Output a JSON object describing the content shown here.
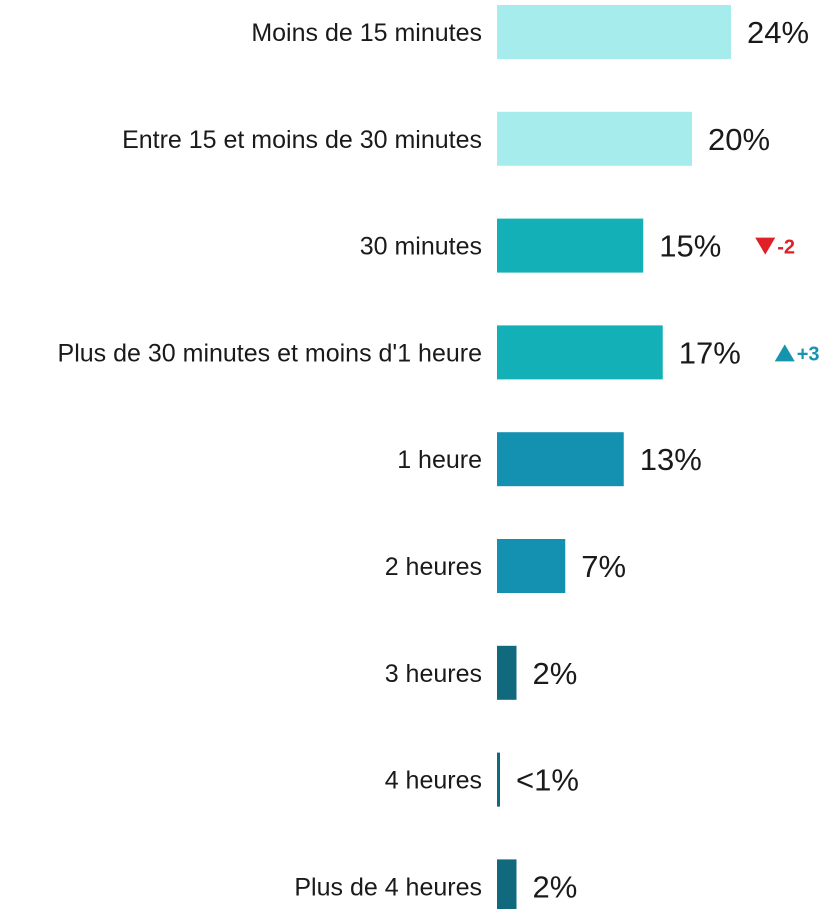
{
  "chart_data": {
    "type": "bar",
    "orientation": "horizontal",
    "title": "",
    "xlabel": "",
    "ylabel": "",
    "xlim": [
      0,
      24
    ],
    "grid": false,
    "legend": "none",
    "categories": [
      "Moins de 15 minutes",
      "Entre 15 et moins de 30 minutes",
      "30 minutes",
      "Plus de 30 minutes et moins d'1 heure",
      "1 heure",
      "2 heures",
      "3 heures",
      "4 heures",
      "Plus de 4 heures"
    ],
    "values": [
      24,
      20,
      15,
      17,
      13,
      7,
      2,
      0.3,
      2
    ],
    "value_labels": [
      "24%",
      "20%",
      "15%",
      "17%",
      "13%",
      "7%",
      "2%",
      "<1%",
      "2%"
    ],
    "bar_colors": [
      "#a6ecec",
      "#a6ecec",
      "#13b1b7",
      "#13b1b7",
      "#1491b0",
      "#1491b0",
      "#11697d",
      "#11697d",
      "#11697d"
    ],
    "changes": [
      null,
      null,
      {
        "direction": "down",
        "text": "-2",
        "color": "#e02027"
      },
      {
        "direction": "up",
        "text": "+3",
        "color": "#1693ad"
      },
      null,
      null,
      null,
      null,
      null
    ]
  }
}
